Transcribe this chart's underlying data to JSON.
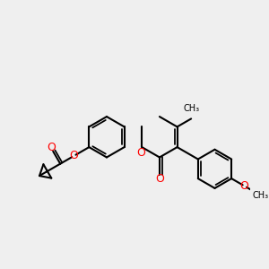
{
  "bg_color": "#efefef",
  "bond_color": "#000000",
  "o_color": "#ff0000",
  "line_width": 1.5,
  "figsize": [
    3.0,
    3.0
  ],
  "dpi": 100,
  "xlim": [
    0,
    10
  ],
  "ylim": [
    0,
    10
  ]
}
